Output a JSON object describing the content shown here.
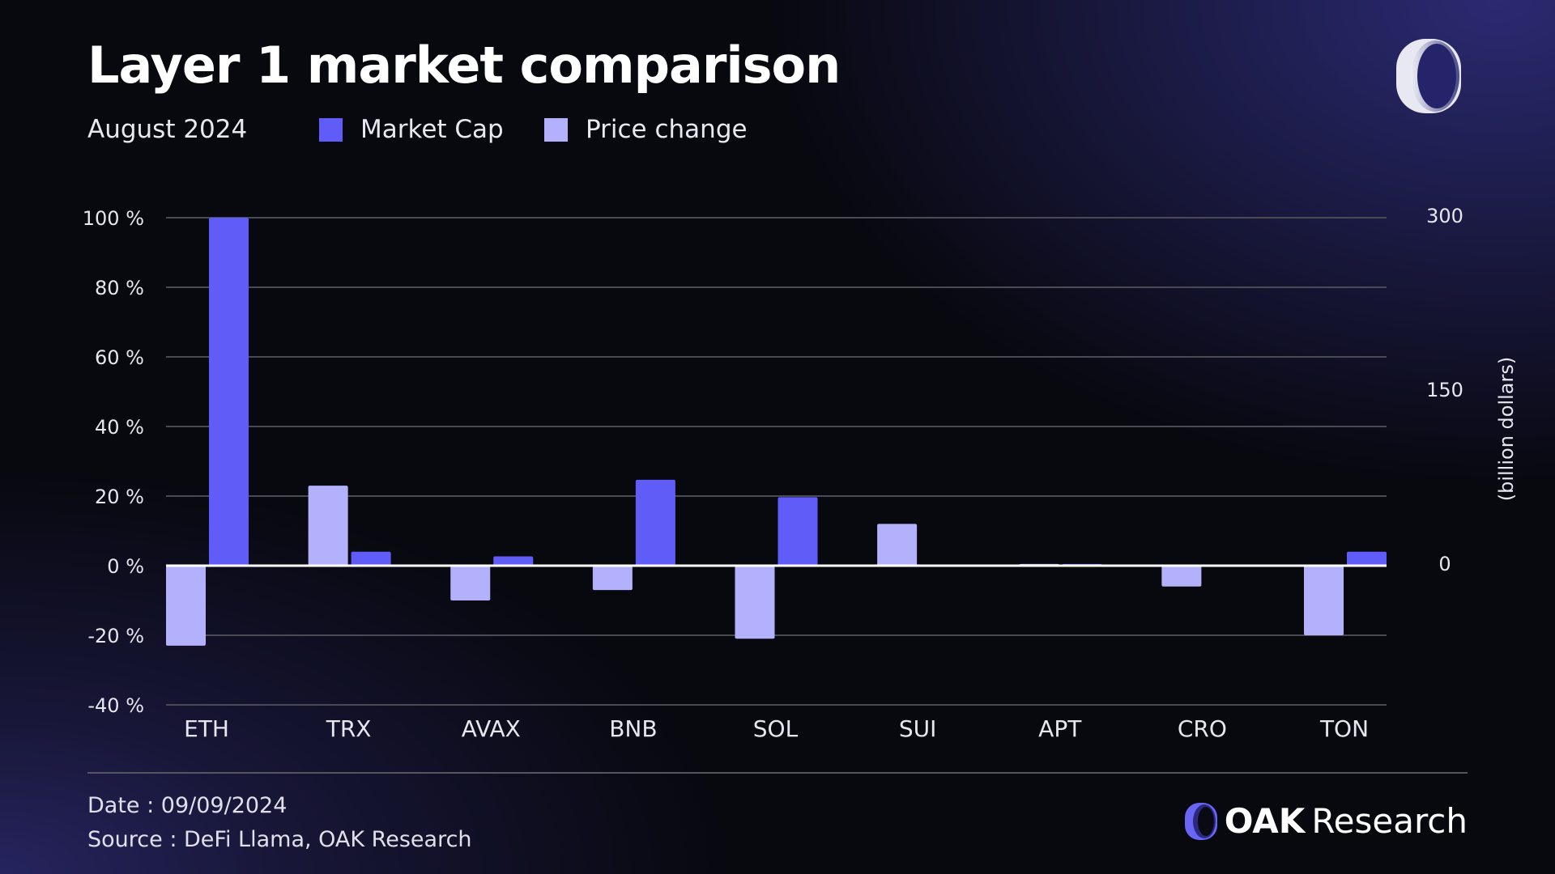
{
  "header": {
    "title": "Layer 1 market comparison",
    "subtitle": "August 2024"
  },
  "legend": [
    {
      "label": "Market Cap",
      "color": "#5f5cf8"
    },
    {
      "label": "Price change",
      "color": "#b3b1fb"
    }
  ],
  "footer": {
    "date": "Date : 09/09/2024",
    "source": "Source : DeFi Llama, OAK Research",
    "brand_bold": "OAK",
    "brand_light": "Research"
  },
  "chart_data": {
    "type": "bar",
    "categories": [
      "ETH",
      "TRX",
      "AVAX",
      "BNB",
      "SOL",
      "SUI",
      "APT",
      "CRO",
      "TON"
    ],
    "series": [
      {
        "name": "Price change",
        "axis": "left",
        "color": "#b3b1fb",
        "values": [
          -23,
          23,
          -10,
          -7,
          -21,
          12,
          0.5,
          -6,
          -20
        ]
      },
      {
        "name": "Market Cap",
        "axis": "right",
        "color": "#5f5cf8",
        "values": [
          300,
          12,
          8,
          74,
          59,
          1,
          1.5,
          1,
          12
        ]
      }
    ],
    "y_left": {
      "range": [
        -40,
        100
      ],
      "ticks": [
        100,
        80,
        60,
        40,
        20,
        0,
        -20,
        -40
      ],
      "tick_labels": [
        "100 %",
        "80 %",
        "60 %",
        "40 %",
        "20 %",
        "0 %",
        "-20 %",
        "-40 %"
      ]
    },
    "y_right": {
      "range": [
        0,
        300
      ],
      "ticks": [
        300,
        150,
        0
      ],
      "tick_labels": [
        "300",
        "150",
        "0"
      ],
      "label": "(billion dollars)"
    },
    "grid": true,
    "legend_placement": "top-left"
  }
}
